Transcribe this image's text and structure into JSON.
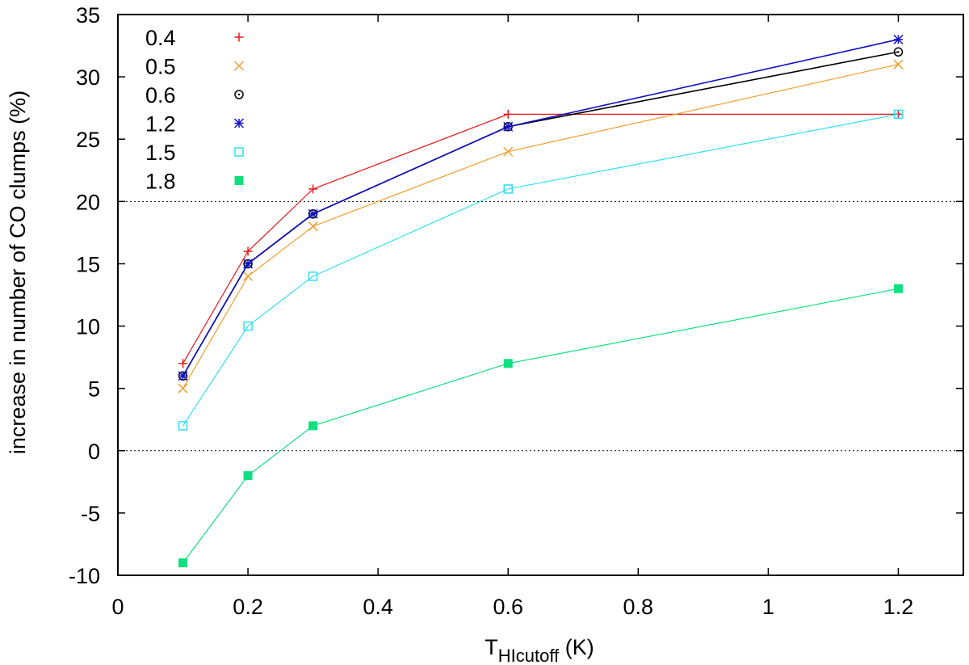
{
  "chart_data": {
    "type": "line",
    "xlabel": {
      "main": "T",
      "sub": "HIcutoff",
      "suffix": " (K)"
    },
    "ylabel": "increase in number of CO clumps (%)",
    "xlim": [
      0,
      1.3
    ],
    "ylim": [
      -10,
      35
    ],
    "xticks": [
      0,
      0.2,
      0.4,
      0.6,
      0.8,
      1,
      1.2
    ],
    "xtick_labels": [
      "0",
      "0.2",
      "0.4",
      "0.6",
      "0.8",
      "1",
      "1.2"
    ],
    "yticks": [
      -10,
      -5,
      0,
      5,
      10,
      15,
      20,
      25,
      30,
      35
    ],
    "ytick_labels": [
      "-10",
      "-5",
      "0",
      "5",
      "10",
      "15",
      "20",
      "25",
      "30",
      "35"
    ],
    "reference_lines": [
      0,
      20
    ],
    "grid": false,
    "legend_position": "top-left",
    "x": [
      0.1,
      0.2,
      0.3,
      0.6,
      1.2
    ],
    "series": [
      {
        "name": "0.4",
        "values": [
          7,
          16,
          21,
          27,
          27
        ],
        "color": "#e41a1c",
        "marker": "plus"
      },
      {
        "name": "0.5",
        "values": [
          5,
          14,
          18,
          24,
          31
        ],
        "color": "#f0a030",
        "marker": "cross"
      },
      {
        "name": "0.6",
        "values": [
          6,
          15,
          19,
          26,
          32
        ],
        "color": "#000000",
        "marker": "circle-dot"
      },
      {
        "name": "1.2",
        "values": [
          6,
          15,
          19,
          26,
          33
        ],
        "color": "#1010c0",
        "marker": "star"
      },
      {
        "name": "1.5",
        "values": [
          2,
          10,
          14,
          21,
          27
        ],
        "color": "#30e0f0",
        "marker": "square-open"
      },
      {
        "name": "1.8",
        "values": [
          -9,
          -2,
          2,
          7,
          13
        ],
        "color": "#10e080",
        "marker": "square-filled"
      }
    ]
  }
}
